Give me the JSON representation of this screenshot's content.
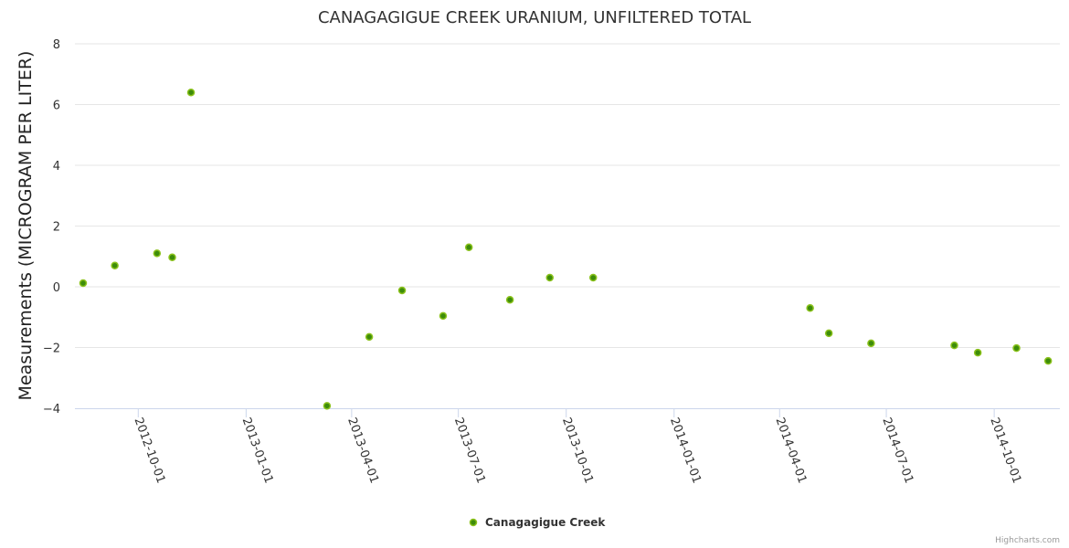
{
  "chart_data": {
    "type": "scatter",
    "title": "CANAGAGIGUE CREEK URANIUM, UNFILTERED TOTAL",
    "xlabel": "",
    "ylabel": "Measurements (MICROGRAM PER LITER)",
    "ylim": [
      -4,
      8
    ],
    "yticks": [
      -4,
      -2,
      0,
      2,
      4,
      6,
      8
    ],
    "xlim": [
      "2012-08-08",
      "2014-11-26"
    ],
    "xticks": [
      "2012-10-01",
      "2013-01-01",
      "2013-04-01",
      "2013-07-01",
      "2013-10-01",
      "2014-01-01",
      "2014-04-01",
      "2014-07-01",
      "2014-10-01"
    ],
    "grid": true,
    "legend_position": "bottom-center",
    "series": [
      {
        "name": "Canagagigue Creek",
        "color": "#3d8c0a",
        "points": [
          {
            "x": "2012-08-15",
            "y": 0.12
          },
          {
            "x": "2012-09-11",
            "y": 0.7
          },
          {
            "x": "2012-10-17",
            "y": 1.1
          },
          {
            "x": "2012-10-30",
            "y": 0.97
          },
          {
            "x": "2012-11-15",
            "y": 6.4
          },
          {
            "x": "2013-03-11",
            "y": -3.92
          },
          {
            "x": "2013-04-16",
            "y": -1.65
          },
          {
            "x": "2013-05-14",
            "y": -0.12
          },
          {
            "x": "2013-06-18",
            "y": -0.96
          },
          {
            "x": "2013-07-10",
            "y": 1.3
          },
          {
            "x": "2013-08-14",
            "y": -0.43
          },
          {
            "x": "2013-09-17",
            "y": 0.3
          },
          {
            "x": "2013-10-24",
            "y": 0.3
          },
          {
            "x": "2014-04-27",
            "y": -0.7
          },
          {
            "x": "2014-05-13",
            "y": -1.53
          },
          {
            "x": "2014-06-18",
            "y": -1.86
          },
          {
            "x": "2014-08-28",
            "y": -1.93
          },
          {
            "x": "2014-09-17",
            "y": -2.17
          },
          {
            "x": "2014-10-20",
            "y": -2.02
          },
          {
            "x": "2014-11-16",
            "y": -2.44
          }
        ]
      }
    ],
    "credit": "Highcharts.com"
  }
}
